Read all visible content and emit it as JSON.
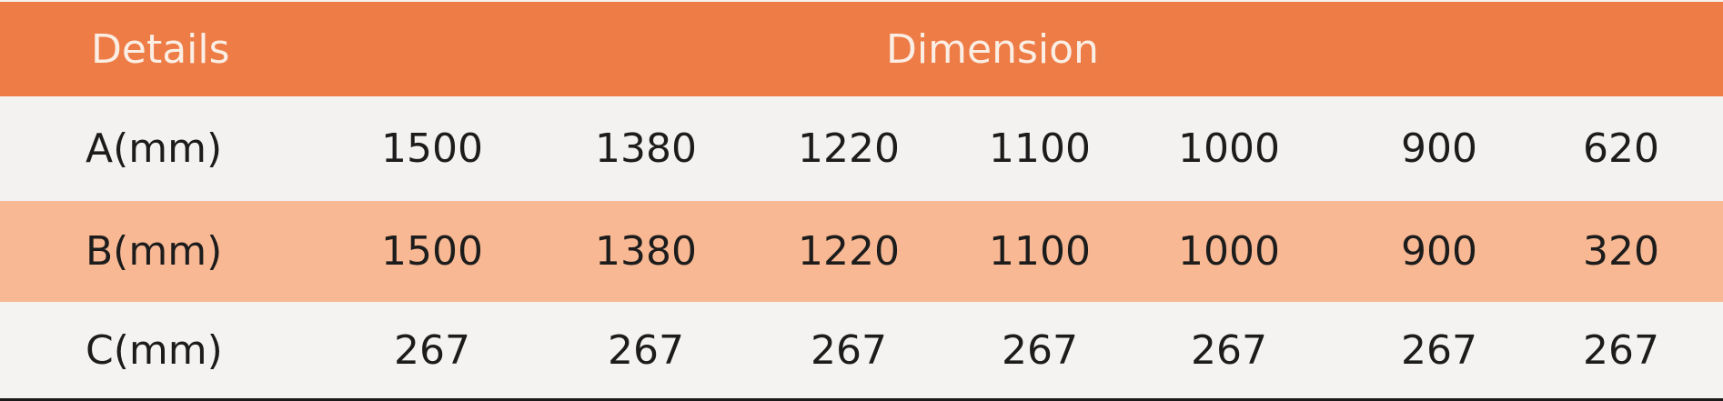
{
  "header": {
    "details": "Details",
    "dimension": "Dimension"
  },
  "rows": [
    {
      "label": "A(mm)",
      "values": [
        "1500",
        "1380",
        "1220",
        "1100",
        "1000",
        "900",
        "620"
      ]
    },
    {
      "label": "B(mm)",
      "values": [
        "1500",
        "1380",
        "1220",
        "1100",
        "1000",
        "900",
        "320"
      ]
    },
    {
      "label": "C(mm)",
      "values": [
        "267",
        "267",
        "267",
        "267",
        "267",
        "267",
        "267"
      ]
    }
  ],
  "colors": {
    "header": "#ee7c46",
    "highlight_row": "#f8b893",
    "row": "#f4f2f0"
  }
}
